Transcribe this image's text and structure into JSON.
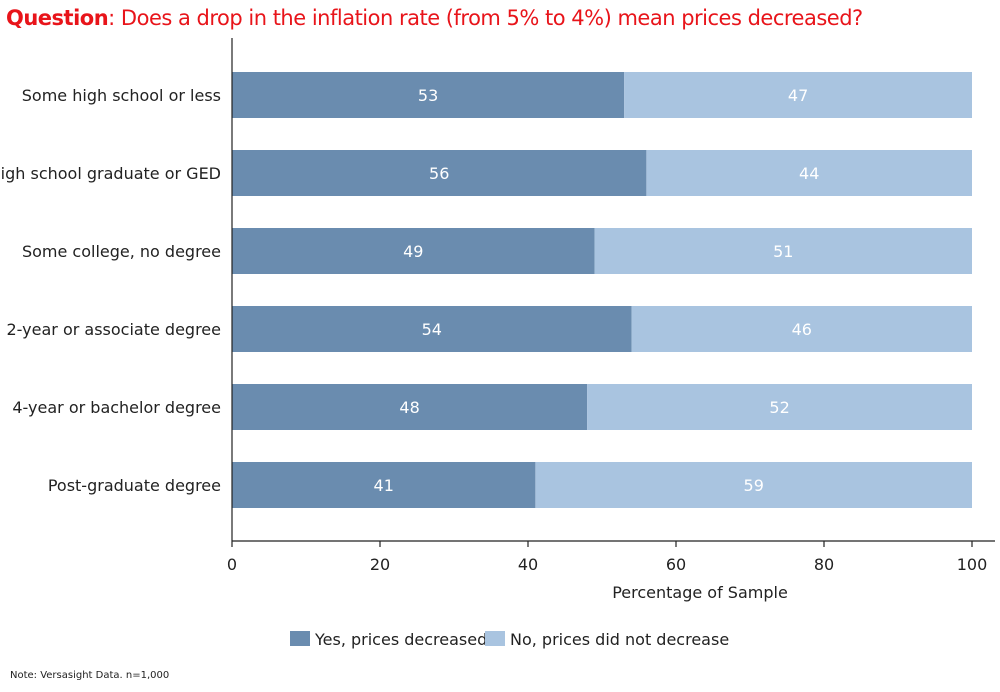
{
  "title": {
    "bold": "Question",
    "rest": ": Does a drop in the inflation rate (from 5% to 4%) mean prices decreased?"
  },
  "footnote": "Note: Versasight Data. n=1,000",
  "colors": {
    "title": "#e8141a",
    "yes": "#6a8caf",
    "no": "#a9c4e0"
  },
  "chart_data": {
    "type": "bar",
    "orientation": "horizontal",
    "stacked": true,
    "categories": [
      "Some high school or less",
      "High school graduate or GED",
      "Some college, no degree",
      "2-year or associate degree",
      "4-year or bachelor degree",
      "Post-graduate degree"
    ],
    "series": [
      {
        "name": "Yes, prices decreased",
        "values": [
          53,
          56,
          49,
          54,
          48,
          41
        ],
        "color": "#6a8caf"
      },
      {
        "name": "No, prices did not decrease",
        "values": [
          47,
          44,
          51,
          46,
          52,
          59
        ],
        "color": "#a9c4e0"
      }
    ],
    "data_labels": [
      [
        "53",
        "56",
        "49",
        "54",
        "48",
        "41"
      ],
      [
        "47",
        "44",
        "51",
        "46",
        "52",
        "59"
      ]
    ],
    "xlabel": "Percentage of Sample",
    "xticks": [
      0,
      20,
      40,
      60,
      80,
      100
    ],
    "xlim": [
      0,
      100
    ],
    "grid": false,
    "legend_position": "bottom"
  }
}
